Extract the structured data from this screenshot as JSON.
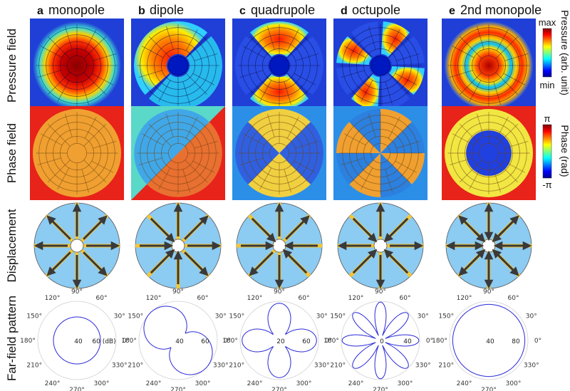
{
  "columns": [
    {
      "letter": "a",
      "title": "monopole",
      "mode": 0,
      "radial": 1,
      "far_labels": [
        "40",
        "60 (dB)"
      ]
    },
    {
      "letter": "b",
      "title": "dipole",
      "mode": 1,
      "radial": 0,
      "far_labels": [
        "40",
        "60"
      ]
    },
    {
      "letter": "c",
      "title": "quadrupole",
      "mode": 2,
      "radial": 0,
      "far_labels": [
        "20",
        "60"
      ]
    },
    {
      "letter": "d",
      "title": "octupole",
      "mode": 4,
      "radial": 0,
      "far_labels": [
        "0",
        "40"
      ]
    },
    {
      "letter": "e",
      "title": "2nd monopole",
      "mode": 0,
      "radial": 2,
      "far_labels": [
        "40",
        "80"
      ]
    }
  ],
  "rows": {
    "pressure": "Pressure field",
    "phase": "Phase field",
    "displacement": "Displacement",
    "farfield": "Far-field pattern"
  },
  "colorbars": {
    "pressure": {
      "top": "max",
      "bottom": "min",
      "title": "Pressure (arb. unit)"
    },
    "phase": {
      "top": "π",
      "bottom": "-π",
      "title": "Phase (rad)"
    }
  },
  "polar_angles": [
    "0°",
    "30°",
    "60°",
    "90°",
    "120°",
    "150°",
    "180°",
    "210°",
    "240°",
    "270°",
    "300°",
    "330°"
  ],
  "colors": {
    "jet_dark_blue": "#00008f",
    "field_blue": "#1f3fd6",
    "phase_orange": "#f0a030",
    "phase_red": "#e8231a",
    "phase_blue": "#2b8fe8",
    "phase_yellow": "#f2e642",
    "disp_disk": "#8ccbf2",
    "disp_spoke": "#f5c633",
    "arrow": "#3a3a3a",
    "polar_curve": "#2a2ad8"
  }
}
